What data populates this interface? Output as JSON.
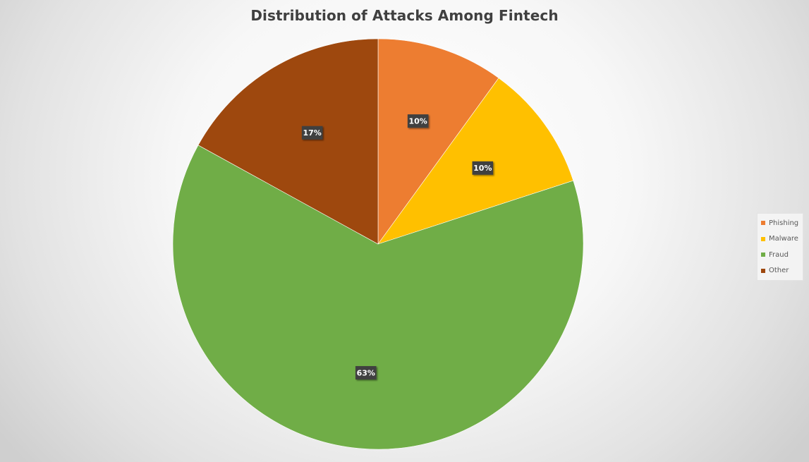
{
  "chart_data": {
    "type": "pie",
    "title": "Distribution of Attacks Among Fintech",
    "categories": [
      "Phishing",
      "Malware",
      "Fraud",
      "Other"
    ],
    "values": [
      10,
      10,
      63,
      17
    ],
    "data_labels": [
      "10%",
      "10%",
      "63%",
      "17%"
    ],
    "colors": [
      "#ed7d31",
      "#ffc000",
      "#70ad47",
      "#9e480e"
    ],
    "start_angle_deg": 0,
    "direction": "clockwise",
    "legend_position": "right",
    "label_style": "dark-box-white-text"
  }
}
